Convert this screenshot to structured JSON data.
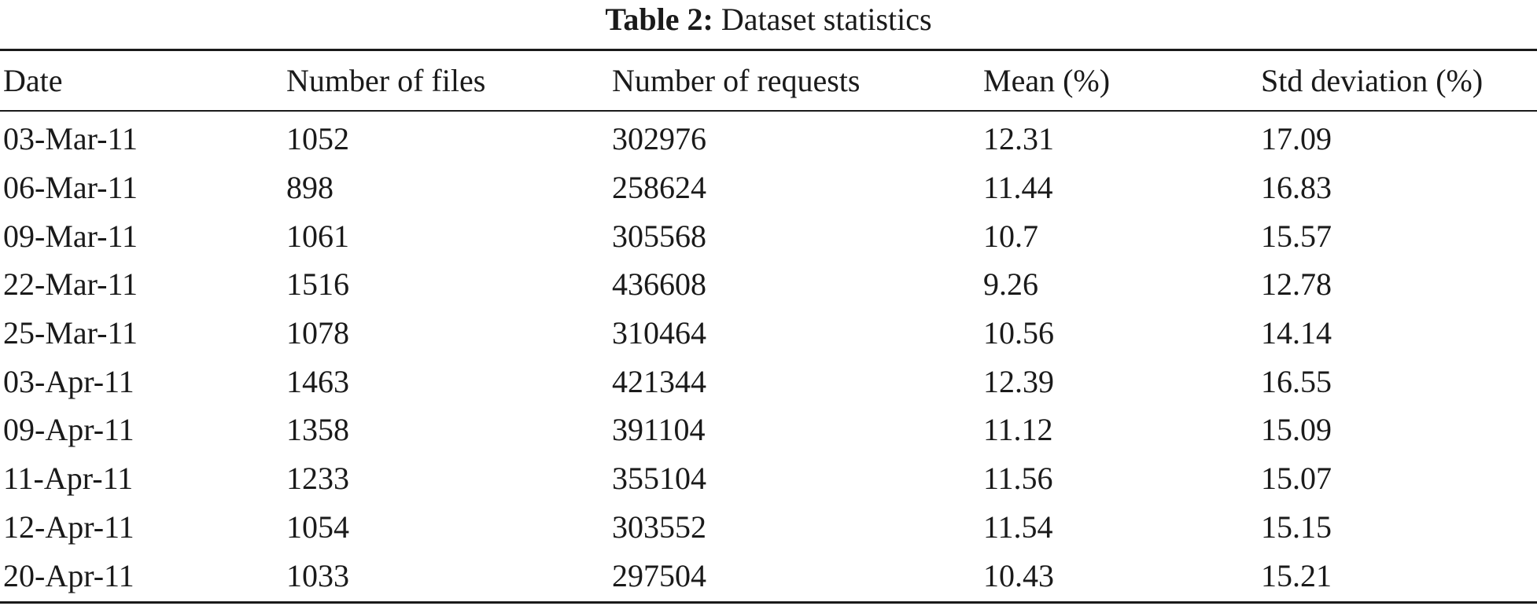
{
  "caption": {
    "label": "Table 2:",
    "text": "Dataset statistics"
  },
  "table": {
    "columns": [
      "Date",
      "Number of files",
      "Number of requests",
      "Mean (%)",
      "Std deviation (%)"
    ],
    "rows": [
      [
        "03-Mar-11",
        "1052",
        "302976",
        "12.31",
        "17.09"
      ],
      [
        "06-Mar-11",
        "898",
        "258624",
        "11.44",
        "16.83"
      ],
      [
        "09-Mar-11",
        "1061",
        "305568",
        "10.7",
        "15.57"
      ],
      [
        "22-Mar-11",
        "1516",
        "436608",
        "9.26",
        "12.78"
      ],
      [
        "25-Mar-11",
        "1078",
        "310464",
        "10.56",
        "14.14"
      ],
      [
        "03-Apr-11",
        "1463",
        "421344",
        "12.39",
        "16.55"
      ],
      [
        "09-Apr-11",
        "1358",
        "391104",
        "11.12",
        "15.09"
      ],
      [
        "11-Apr-11",
        "1233",
        "355104",
        "11.56",
        "15.07"
      ],
      [
        "12-Apr-11",
        "1054",
        "303552",
        "11.54",
        "15.15"
      ],
      [
        "20-Apr-11",
        "1033",
        "297504",
        "10.43",
        "15.21"
      ]
    ]
  }
}
